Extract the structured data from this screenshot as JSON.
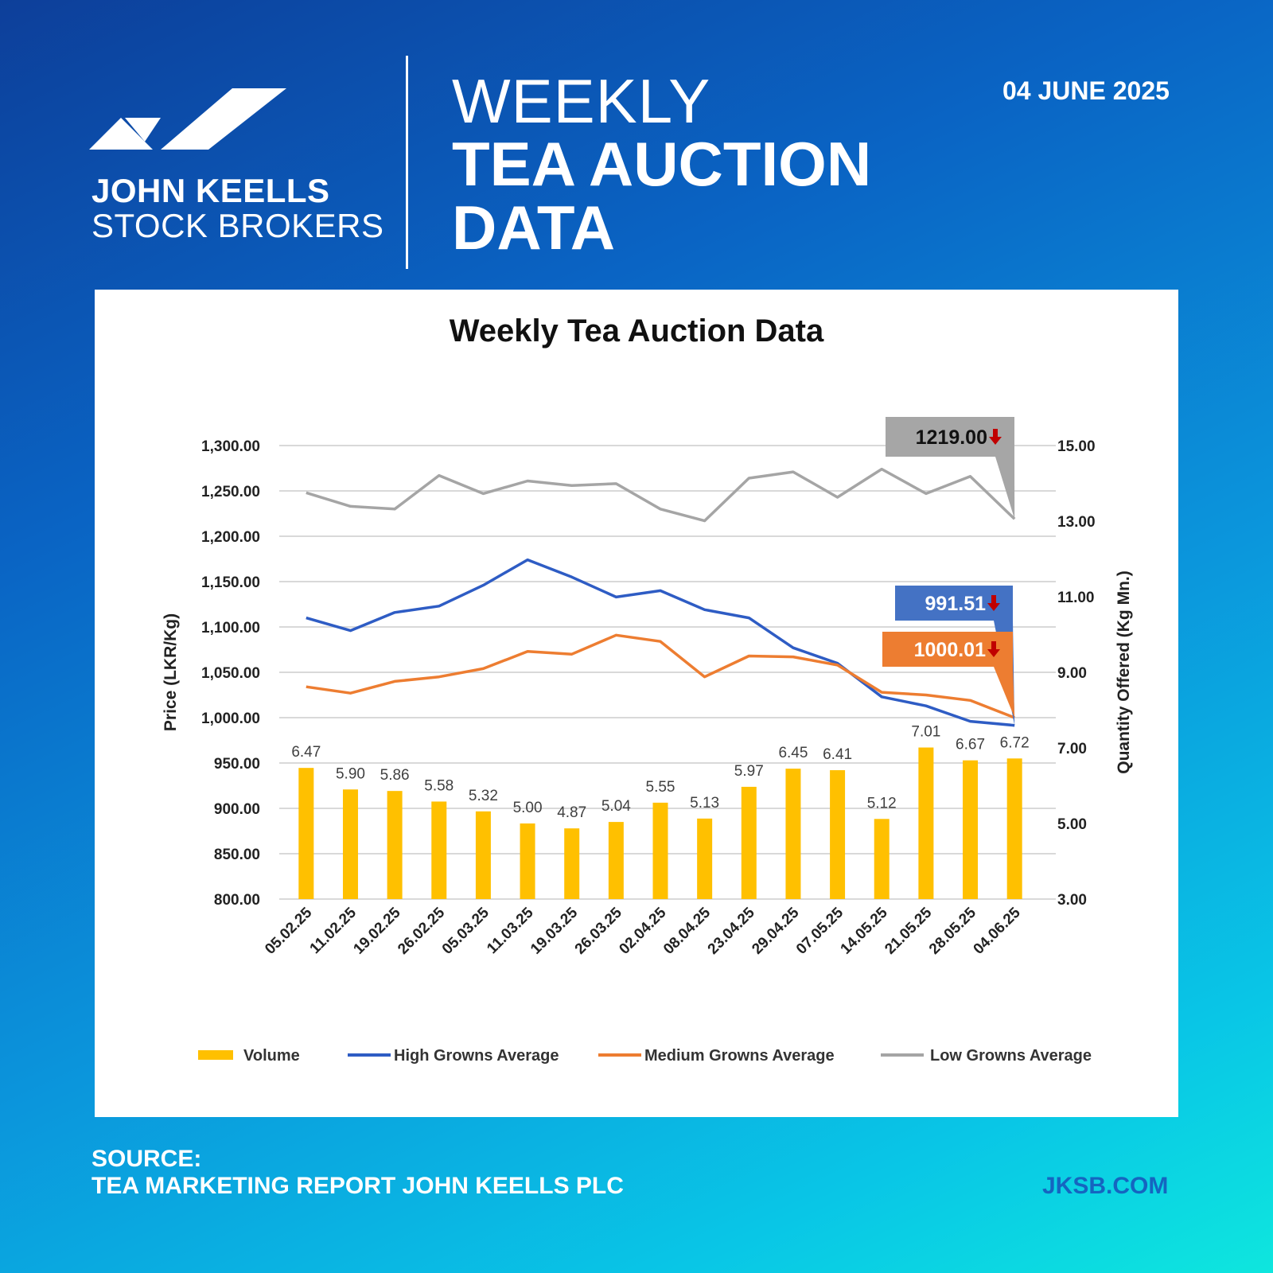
{
  "brand": {
    "line1": "JOHN KEELLS",
    "line2": "STOCK BROKERS"
  },
  "header": {
    "weekly": "WEEKLY",
    "title_line1": "TEA AUCTION",
    "title_line2": "DATA",
    "date": "04 JUNE 2025"
  },
  "footer": {
    "source_label": "SOURCE:",
    "source_text": "TEA MARKETING REPORT JOHN KEELLS PLC",
    "website": "JKSB.COM"
  },
  "colors": {
    "volume": "#ffc000",
    "high": "#2e5cc4",
    "medium": "#ed7d31",
    "low": "#a5a5a5",
    "arrow": "#c00000",
    "site": "#1565c0"
  },
  "chart_data": {
    "type": "bar+line",
    "title": "Weekly Tea Auction Data",
    "ylabel": "Price (LKR/Kg)",
    "y2label": "Quantity Offered (Kg Mn.)",
    "ylim": [
      800,
      1300
    ],
    "y2lim": [
      3,
      15
    ],
    "y_ticks": [
      "1,300.00",
      "1,250.00",
      "1,200.00",
      "1,150.00",
      "1,100.00",
      "1,050.00",
      "1,000.00",
      "950.00",
      "900.00",
      "850.00",
      "800.00"
    ],
    "y2_ticks": [
      "15.00",
      "13.00",
      "11.00",
      "9.00",
      "7.00",
      "5.00",
      "3.00"
    ],
    "categories": [
      "05.02.25",
      "11.02.25",
      "19.02.25",
      "26.02.25",
      "05.03.25",
      "11.03.25",
      "19.03.25",
      "26.03.25",
      "02.04.25",
      "08.04.25",
      "23.04.25",
      "29.04.25",
      "07.05.25",
      "14.05.25",
      "21.05.25",
      "28.05.25",
      "04.06.25"
    ],
    "volume": {
      "name": "Volume",
      "values": [
        6.47,
        5.9,
        5.86,
        5.58,
        5.32,
        5.0,
        4.87,
        5.04,
        5.55,
        5.13,
        5.97,
        6.45,
        6.41,
        5.12,
        7.01,
        6.67,
        6.72
      ],
      "labels": [
        "6.47",
        "5.90",
        "5.86",
        "5.58",
        "5.32",
        "5.00",
        "4.87",
        "5.04",
        "5.55",
        "5.13",
        "5.97",
        "6.45",
        "6.41",
        "5.12",
        "7.01",
        "6.67",
        "6.72"
      ]
    },
    "series": [
      {
        "name": "High Growns Average",
        "values": [
          1110,
          1096,
          1116,
          1123,
          1146,
          1174,
          1155,
          1133,
          1140,
          1119,
          1110,
          1077,
          1060,
          1023,
          1013,
          996,
          991.51
        ]
      },
      {
        "name": "Medium Growns Average",
        "values": [
          1034,
          1027,
          1040,
          1045,
          1054,
          1073,
          1070,
          1091,
          1084,
          1045,
          1068,
          1067,
          1058,
          1028,
          1025,
          1019,
          1000.01
        ]
      },
      {
        "name": "Low Growns Average",
        "values": [
          1248,
          1233,
          1230,
          1267,
          1247,
          1261,
          1256,
          1258,
          1230,
          1217,
          1264,
          1271,
          1243,
          1274,
          1247,
          1266,
          1219.0
        ]
      }
    ],
    "callouts": {
      "low": "1219.00",
      "high": "991.51",
      "medium": "1000.01"
    },
    "legend": [
      "Volume",
      "High Growns Average",
      "Medium Growns Average",
      "Low Growns Average"
    ],
    "legend_position": "bottom",
    "grid": true
  }
}
